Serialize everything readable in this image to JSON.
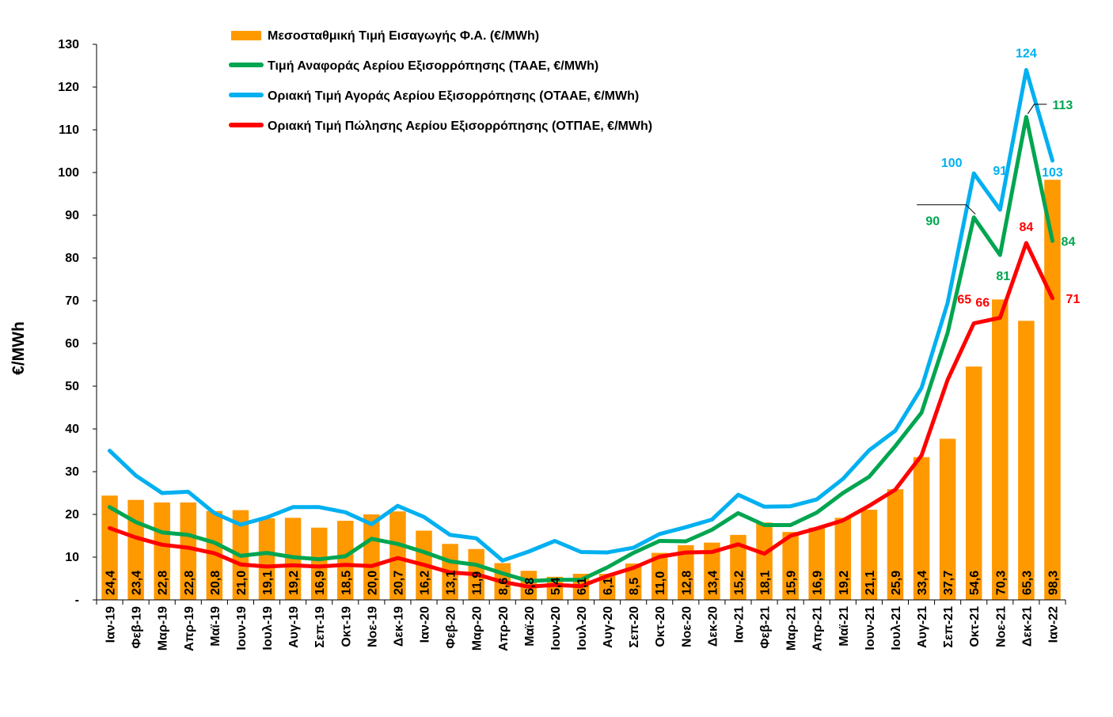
{
  "chart_data": {
    "type": "bar+line",
    "ylabel": "€/MWh",
    "ylim": [
      0,
      130
    ],
    "yticks": [
      0,
      10,
      20,
      30,
      40,
      50,
      60,
      70,
      80,
      90,
      100,
      110,
      120,
      130
    ],
    "ytick_labels": [
      "-",
      "10",
      "20",
      "30",
      "40",
      "50",
      "60",
      "70",
      "80",
      "90",
      "100",
      "110",
      "120",
      "130"
    ],
    "categories": [
      "Ιαν-19",
      "Φεβ-19",
      "Μαρ-19",
      "Απρ-19",
      "Μαϊ-19",
      "Ιουν-19",
      "Ιουλ-19",
      "Αυγ-19",
      "Σεπ-19",
      "Οκτ-19",
      "Νοε-19",
      "Δεκ-19",
      "Ιαν-20",
      "Φεβ-20",
      "Μαρ-20",
      "Απρ-20",
      "Μαϊ-20",
      "Ιουν-20",
      "Ιουλ-20",
      "Αυγ-20",
      "Σεπ-20",
      "Οκτ-20",
      "Νοε-20",
      "Δεκ-20",
      "Ιαν-21",
      "Φεβ-21",
      "Μαρ-21",
      "Απρ-21",
      "Μαϊ-21",
      "Ιουν-21",
      "Ιουλ-21",
      "Αυγ-21",
      "Σεπ-21",
      "Οκτ-21",
      "Νοε-21",
      "Δεκ-21",
      "Ιαν-22"
    ],
    "bars": {
      "name": "Μεσοσταθμική Τιμή Εισαγωγής Φ.Α. (€/MWh)",
      "color": "#FF9900",
      "values": [
        24.4,
        23.4,
        22.8,
        22.8,
        20.8,
        21.0,
        19.1,
        19.2,
        16.9,
        18.5,
        20.0,
        20.7,
        16.2,
        13.1,
        11.9,
        8.6,
        6.8,
        5.4,
        6.1,
        6.1,
        8.5,
        11.0,
        12.8,
        13.4,
        15.2,
        18.1,
        15.9,
        16.9,
        19.2,
        21.1,
        25.9,
        33.4,
        37.7,
        54.6,
        70.3,
        65.3,
        98.3
      ],
      "labels": [
        "24,4",
        "23,4",
        "22,8",
        "22,8",
        "20,8",
        "21,0",
        "19,1",
        "19,2",
        "16,9",
        "18,5",
        "20,0",
        "20,7",
        "16,2",
        "13,1",
        "11,9",
        "8,6",
        "6,8",
        "5,4",
        "6,1",
        "6,1",
        "8,5",
        "11,0",
        "12,8",
        "13,4",
        "15,2",
        "18,1",
        "15,9",
        "16,9",
        "19,2",
        "21,1",
        "25,9",
        "33,4",
        "37,7",
        "54,6",
        "70,3",
        "65,3",
        "98,3"
      ]
    },
    "series": [
      {
        "name": "Τιμή Αναφοράς Αερίου Εξισορρόπησης (ΤΑΑΕ, €/MWh)",
        "color": "#00A550",
        "values": [
          21.7,
          18.2,
          15.8,
          15.2,
          13.4,
          10.3,
          11.0,
          10.0,
          9.5,
          10.2,
          14.3,
          13.1,
          11.2,
          9.0,
          8.2,
          6.2,
          4.4,
          4.7,
          4.7,
          7.6,
          11.0,
          13.8,
          13.7,
          16.4,
          20.3,
          17.5,
          17.5,
          20.4,
          25.0,
          28.8,
          36.0,
          43.8,
          62.5,
          89.5,
          80.7,
          113.0,
          84.0
        ]
      },
      {
        "name": "Οριακή Τιμή Αγοράς Αερίου Εξισορρόπησης  (ΟΤΑΑΕ, €/MWh)",
        "color": "#00B0F0",
        "values": [
          34.9,
          29.1,
          25.0,
          25.3,
          20.3,
          17.6,
          19.3,
          21.7,
          21.7,
          20.5,
          17.7,
          22.0,
          19.4,
          15.2,
          14.4,
          9.2,
          11.3,
          13.8,
          11.2,
          11.1,
          12.2,
          15.4,
          17.0,
          18.8,
          24.6,
          21.8,
          21.9,
          23.5,
          28.3,
          35.0,
          39.6,
          49.6,
          69.5,
          99.8,
          91.3,
          124.0,
          102.8
        ]
      },
      {
        "name": "Οριακή Τιμή Πώλησης Αερίου Εξισορρόπησης (ΟΤΠΑΕ, €/MWh)",
        "color": "#FF0000",
        "values": [
          16.8,
          14.6,
          12.9,
          12.2,
          10.9,
          8.3,
          7.8,
          8.1,
          7.8,
          8.2,
          7.9,
          9.8,
          8.2,
          6.4,
          6.0,
          4.2,
          3.1,
          3.5,
          3.2,
          5.6,
          7.5,
          10.1,
          11.1,
          11.2,
          13.0,
          10.8,
          15.0,
          16.7,
          18.6,
          22.0,
          25.8,
          33.8,
          51.5,
          64.7,
          66.0,
          83.5,
          70.6
        ]
      }
    ],
    "annotations": [
      {
        "series": 1,
        "index": 35,
        "text": "124"
      },
      {
        "series": 1,
        "index": 36,
        "text": "103"
      },
      {
        "series": 1,
        "index": 34,
        "text": "91"
      },
      {
        "series": 1,
        "index": 33,
        "text": "100"
      },
      {
        "series": 0,
        "index": 35,
        "text": "113"
      },
      {
        "series": 0,
        "index": 33,
        "text": "90"
      },
      {
        "series": 0,
        "index": 34,
        "text": "81"
      },
      {
        "series": 0,
        "index": 36,
        "text": "84"
      },
      {
        "series": 2,
        "index": 35,
        "text": "84"
      },
      {
        "series": 2,
        "index": 36,
        "text": "71"
      },
      {
        "series": 2,
        "index": 34,
        "text": "66"
      },
      {
        "series": 2,
        "index": 33,
        "text": "65"
      }
    ]
  }
}
